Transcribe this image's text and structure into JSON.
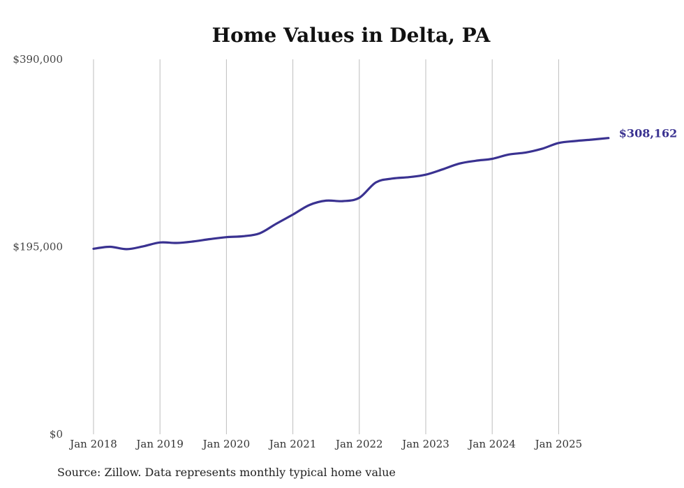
{
  "chart_data": {
    "type": "line",
    "title": "Home Values in Delta, PA",
    "xlabel": "",
    "ylabel": "",
    "ylim": [
      0,
      390000
    ],
    "y_ticks": [
      {
        "value": 0,
        "label": "$0"
      },
      {
        "value": 195000,
        "label": "$195,000"
      },
      {
        "value": 390000,
        "label": "$390,000"
      }
    ],
    "x_ticks": [
      {
        "date": "2018-01",
        "label": "Jan 2018"
      },
      {
        "date": "2019-01",
        "label": "Jan 2019"
      },
      {
        "date": "2020-01",
        "label": "Jan 2020"
      },
      {
        "date": "2021-01",
        "label": "Jan 2021"
      },
      {
        "date": "2022-01",
        "label": "Jan 2022"
      },
      {
        "date": "2023-01",
        "label": "Jan 2023"
      },
      {
        "date": "2024-01",
        "label": "Jan 2024"
      },
      {
        "date": "2025-01",
        "label": "Jan 2025"
      }
    ],
    "grid": "vertical",
    "line_color": "#3a3291",
    "end_label": "$308,162",
    "series": [
      {
        "points": [
          [
            "2018-01",
            193000
          ],
          [
            "2018-04",
            195000
          ],
          [
            "2018-07",
            192500
          ],
          [
            "2018-10",
            195500
          ],
          [
            "2019-01",
            199500
          ],
          [
            "2019-04",
            199000
          ],
          [
            "2019-07",
            200500
          ],
          [
            "2019-10",
            203000
          ],
          [
            "2020-01",
            205000
          ],
          [
            "2020-04",
            206000
          ],
          [
            "2020-07",
            209000
          ],
          [
            "2020-10",
            219000
          ],
          [
            "2021-01",
            228500
          ],
          [
            "2021-04",
            238500
          ],
          [
            "2021-07",
            243000
          ],
          [
            "2021-10",
            242500
          ],
          [
            "2022-01",
            246000
          ],
          [
            "2022-04",
            262000
          ],
          [
            "2022-07",
            266000
          ],
          [
            "2022-10",
            267500
          ],
          [
            "2023-01",
            270000
          ],
          [
            "2023-04",
            275500
          ],
          [
            "2023-07",
            281500
          ],
          [
            "2023-10",
            284500
          ],
          [
            "2024-01",
            286500
          ],
          [
            "2024-04",
            291000
          ],
          [
            "2024-07",
            293000
          ],
          [
            "2024-10",
            297000
          ],
          [
            "2025-01",
            303000
          ],
          [
            "2025-04",
            305000
          ],
          [
            "2025-07",
            306500
          ],
          [
            "2025-10",
            308162
          ]
        ]
      }
    ]
  },
  "footer": {
    "source": "Source: Zillow. Data represents monthly typical home value"
  }
}
